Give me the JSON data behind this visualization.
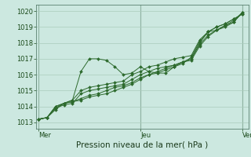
{
  "background_color": "#cce8e0",
  "grid_color": "#aaccbb",
  "line_color": "#2d6a2d",
  "marker_color": "#2d6a2d",
  "ylabel_ticks": [
    1013,
    1014,
    1015,
    1016,
    1017,
    1018,
    1019,
    1020
  ],
  "ylim": [
    1012.6,
    1020.4
  ],
  "xlim": [
    -0.5,
    49.5
  ],
  "xlabel": "Pression niveau de la mer( hPa )",
  "xlabel_fontsize": 7.5,
  "tick_fontsize": 6,
  "day_labels": [
    "Mer",
    "Jeu",
    "Ven"
  ],
  "day_positions": [
    0,
    24,
    48
  ],
  "series": [
    [
      1013.2,
      1013.3,
      1013.8,
      1014.2,
      1014.4,
      1016.2,
      1017.0,
      1017.0,
      1016.9,
      1016.5,
      1016.0,
      1016.1,
      1016.5,
      1016.2,
      1016.1,
      1016.1,
      1016.5,
      1016.7,
      1017.1,
      1018.1,
      1018.7,
      1019.0,
      1019.2,
      1019.5,
      1019.8
    ],
    [
      1013.2,
      1013.3,
      1013.9,
      1014.2,
      1014.4,
      1015.0,
      1015.2,
      1015.3,
      1015.4,
      1015.5,
      1015.6,
      1016.0,
      1016.2,
      1016.5,
      1016.6,
      1016.8,
      1017.0,
      1017.1,
      1017.2,
      1018.2,
      1018.7,
      1019.0,
      1019.2,
      1019.5,
      1019.8
    ],
    [
      1013.2,
      1013.3,
      1013.9,
      1014.1,
      1014.2,
      1014.8,
      1015.0,
      1015.1,
      1015.2,
      1015.3,
      1015.4,
      1015.7,
      1016.0,
      1016.2,
      1016.4,
      1016.5,
      1016.6,
      1016.8,
      1017.0,
      1018.0,
      1018.7,
      1018.8,
      1019.0,
      1019.3,
      1019.9
    ],
    [
      1013.2,
      1013.3,
      1014.0,
      1014.2,
      1014.3,
      1014.5,
      1014.7,
      1014.8,
      1015.0,
      1015.2,
      1015.3,
      1015.5,
      1015.8,
      1016.0,
      1016.2,
      1016.4,
      1016.6,
      1016.8,
      1017.0,
      1017.9,
      1018.5,
      1018.8,
      1019.1,
      1019.4,
      1019.9
    ],
    [
      1013.2,
      1013.3,
      1014.0,
      1014.2,
      1014.3,
      1014.4,
      1014.6,
      1014.7,
      1014.8,
      1015.0,
      1015.2,
      1015.4,
      1015.7,
      1016.0,
      1016.1,
      1016.3,
      1016.5,
      1016.8,
      1016.9,
      1017.8,
      1018.4,
      1018.8,
      1019.1,
      1019.3,
      1019.9
    ]
  ]
}
